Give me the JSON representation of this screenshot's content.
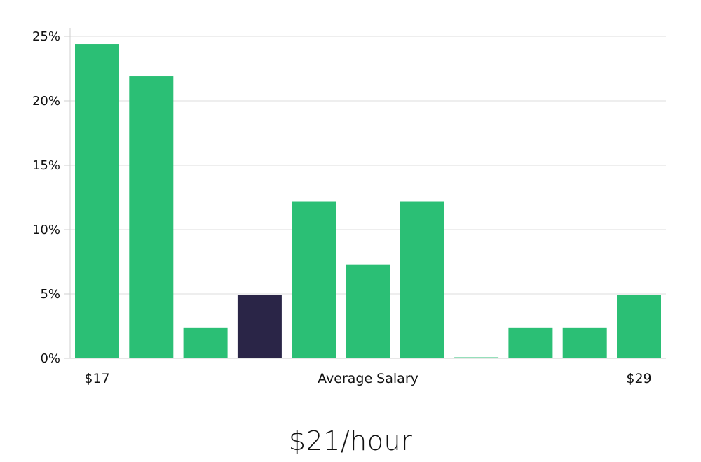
{
  "chart_data": {
    "type": "bar",
    "values": [
      24.4,
      21.9,
      2.4,
      4.9,
      12.2,
      7.3,
      12.2,
      0,
      2.4,
      2.4,
      4.9
    ],
    "highlight_index": 3,
    "ylim": [
      0,
      25
    ],
    "y_ticks": [
      0,
      5,
      10,
      15,
      20,
      25
    ],
    "y_tick_labels": [
      "0%",
      "5%",
      "10%",
      "15%",
      "20%",
      "25%"
    ],
    "x_label_left": "$17",
    "xlabel": "Average Salary",
    "x_label_right": "$29",
    "grid": true,
    "colors": {
      "bar": "#2bbf75",
      "highlight": "#2a2547",
      "grid": "#dcdcdc",
      "axis": "#cfcfcf"
    }
  },
  "summary": {
    "value_label": "$21/hour"
  }
}
